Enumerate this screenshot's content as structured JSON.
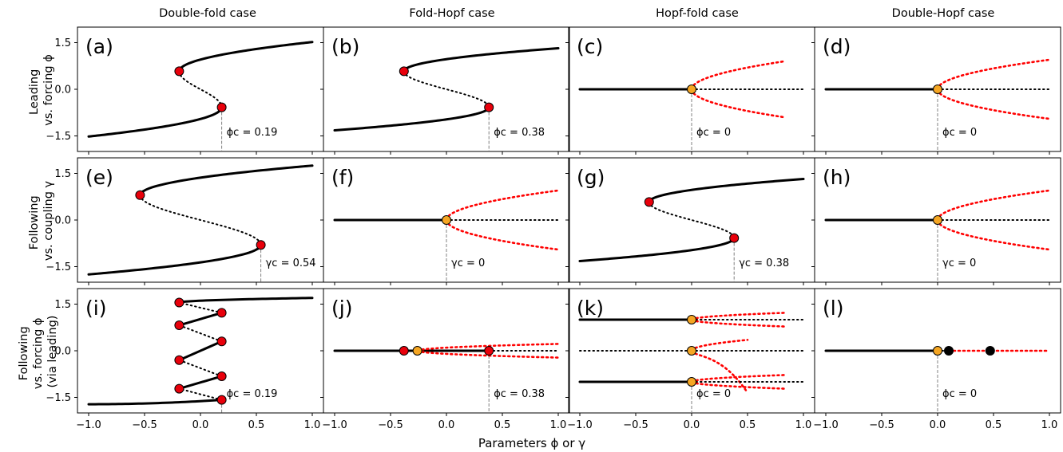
{
  "figure": {
    "xlabel": "Parameters ϕ or γ",
    "column_titles": [
      "Double-fold case",
      "Fold-Hopf case",
      "Hopf-fold case",
      "Double-Hopf case"
    ],
    "row_labels": [
      [
        "Leading",
        "vs. forcing ϕ"
      ],
      [
        "Following",
        "vs. coupling γ"
      ],
      [
        "Following",
        "vs. forcing ϕ",
        "(via leading)"
      ]
    ],
    "colors": {
      "stable": "#000000",
      "unstable": "#000000",
      "periodic": "#ff0000",
      "fold_point": "#e8000b",
      "hopf_point": "#f5a623",
      "other_point": "#000000",
      "threshold_line": "#808080"
    }
  },
  "chart_data": [
    {
      "type": "line",
      "label": "(a)",
      "row": 0,
      "col": 0,
      "xlim": [
        -1.1,
        1.1
      ],
      "ylim": [
        -2.0,
        2.0
      ],
      "xticks": [
        "-1.0",
        "-0.5",
        "0.0",
        "0.5",
        "1.0"
      ],
      "yticks": [
        "-1.5",
        "0.0",
        "1.5"
      ],
      "threshold": {
        "x": 0.19,
        "text": "ϕc = 0.19"
      },
      "bifurcation": {
        "kind": "s-curve",
        "x_fold_left": -0.19,
        "x_fold_right": 0.19,
        "y_fold_upper": 0.58,
        "y_fold_lower": -0.58,
        "y_at_left_end": -1.52,
        "y_at_right_end": 1.52,
        "x_range": [
          -1.0,
          1.0
        ]
      },
      "points": [
        {
          "x": -0.19,
          "y": 0.58,
          "kind": "fold"
        },
        {
          "x": 0.19,
          "y": -0.58,
          "kind": "fold"
        }
      ]
    },
    {
      "type": "line",
      "label": "(b)",
      "row": 0,
      "col": 1,
      "xlim": [
        -1.1,
        1.1
      ],
      "ylim": [
        -2.0,
        2.0
      ],
      "xticks": [
        "-1.0",
        "-0.5",
        "0.0",
        "0.5",
        "1.0"
      ],
      "yticks": [
        "-1.5",
        "0.0",
        "1.5"
      ],
      "threshold": {
        "x": 0.38,
        "text": "ϕc = 0.38"
      },
      "bifurcation": {
        "kind": "s-curve",
        "x_fold_left": -0.38,
        "x_fold_right": 0.38,
        "y_fold_upper": 0.58,
        "y_fold_lower": -0.58,
        "y_at_left_end": -1.32,
        "y_at_right_end": 1.32,
        "x_range": [
          -1.0,
          1.0
        ]
      },
      "points": [
        {
          "x": -0.38,
          "y": 0.58,
          "kind": "fold"
        },
        {
          "x": 0.38,
          "y": -0.58,
          "kind": "fold"
        }
      ]
    },
    {
      "type": "line",
      "label": "(c)",
      "row": 0,
      "col": 2,
      "xlim": [
        -1.1,
        1.1
      ],
      "ylim": [
        -2.0,
        2.0
      ],
      "xticks": [
        "-1.0",
        "-0.5",
        "0.0",
        "0.5",
        "1.0"
      ],
      "yticks": [
        "-1.5",
        "0.0",
        "1.5"
      ],
      "threshold": {
        "x": 0.0,
        "text": "ϕc = 0"
      },
      "bifurcation": {
        "kind": "hopf",
        "y0": 0.0,
        "x_hopf": 0.0,
        "x_end": 1.0,
        "x_periodic_end": 0.83,
        "amp": 0.9,
        "x_range": [
          -1.0,
          1.0
        ]
      },
      "points": [
        {
          "x": 0.0,
          "y": 0.0,
          "kind": "hopf"
        }
      ]
    },
    {
      "type": "line",
      "label": "(d)",
      "row": 0,
      "col": 3,
      "xlim": [
        -1.1,
        1.1
      ],
      "ylim": [
        -2.0,
        2.0
      ],
      "xticks": [
        "-1.0",
        "-0.5",
        "0.0",
        "0.5",
        "1.0"
      ],
      "yticks": [
        "-1.5",
        "0.0",
        "1.5"
      ],
      "threshold": {
        "x": 0.0,
        "text": "ϕc = 0"
      },
      "bifurcation": {
        "kind": "hopf",
        "y0": 0.0,
        "x_hopf": 0.0,
        "x_end": 1.0,
        "x_periodic_end": 1.0,
        "amp": 0.95,
        "x_range": [
          -1.0,
          1.0
        ]
      },
      "points": [
        {
          "x": 0.0,
          "y": 0.0,
          "kind": "hopf"
        }
      ]
    },
    {
      "type": "line",
      "label": "(e)",
      "row": 1,
      "col": 0,
      "xlim": [
        -1.1,
        1.1
      ],
      "ylim": [
        -2.0,
        2.0
      ],
      "xticks": [
        "-1.0",
        "-0.5",
        "0.0",
        "0.5",
        "1.0"
      ],
      "yticks": [
        "-1.5",
        "0.0",
        "1.5"
      ],
      "threshold": {
        "x": 0.54,
        "text": "γc = 0.54"
      },
      "bifurcation": {
        "kind": "s-curve",
        "x_fold_left": -0.54,
        "x_fold_right": 0.54,
        "y_fold_upper": 0.8,
        "y_fold_lower": -0.8,
        "y_at_left_end": -1.75,
        "y_at_right_end": 1.75,
        "x_range": [
          -1.0,
          1.0
        ]
      },
      "points": [
        {
          "x": -0.54,
          "y": 0.8,
          "kind": "fold"
        },
        {
          "x": 0.54,
          "y": -0.8,
          "kind": "fold"
        }
      ]
    },
    {
      "type": "line",
      "label": "(f)",
      "row": 1,
      "col": 1,
      "xlim": [
        -1.1,
        1.1
      ],
      "ylim": [
        -2.0,
        2.0
      ],
      "xticks": [
        "-1.0",
        "-0.5",
        "0.0",
        "0.5",
        "1.0"
      ],
      "yticks": [
        "-1.5",
        "0.0",
        "1.5"
      ],
      "threshold": {
        "x": 0.0,
        "text": "γc = 0"
      },
      "bifurcation": {
        "kind": "hopf",
        "y0": 0.0,
        "x_hopf": 0.0,
        "x_end": 1.0,
        "x_periodic_end": 1.0,
        "amp": 0.95,
        "x_range": [
          -1.0,
          1.0
        ]
      },
      "points": [
        {
          "x": 0.0,
          "y": 0.0,
          "kind": "hopf"
        }
      ]
    },
    {
      "type": "line",
      "label": "(g)",
      "row": 1,
      "col": 2,
      "xlim": [
        -1.1,
        1.1
      ],
      "ylim": [
        -2.0,
        2.0
      ],
      "xticks": [
        "-1.0",
        "-0.5",
        "0.0",
        "0.5",
        "1.0"
      ],
      "yticks": [
        "-1.5",
        "0.0",
        "1.5"
      ],
      "threshold": {
        "x": 0.38,
        "text": "γc = 0.38"
      },
      "bifurcation": {
        "kind": "s-curve",
        "x_fold_left": -0.38,
        "x_fold_right": 0.38,
        "y_fold_upper": 0.58,
        "y_fold_lower": -0.58,
        "y_at_left_end": -1.32,
        "y_at_right_end": 1.32,
        "x_range": [
          -1.0,
          1.0
        ]
      },
      "points": [
        {
          "x": -0.38,
          "y": 0.58,
          "kind": "fold"
        },
        {
          "x": 0.38,
          "y": -0.58,
          "kind": "fold"
        }
      ]
    },
    {
      "type": "line",
      "label": "(h)",
      "row": 1,
      "col": 3,
      "xlim": [
        -1.1,
        1.1
      ],
      "ylim": [
        -2.0,
        2.0
      ],
      "xticks": [
        "-1.0",
        "-0.5",
        "0.0",
        "0.5",
        "1.0"
      ],
      "yticks": [
        "-1.5",
        "0.0",
        "1.5"
      ],
      "threshold": {
        "x": 0.0,
        "text": "γc = 0"
      },
      "bifurcation": {
        "kind": "hopf",
        "y0": 0.0,
        "x_hopf": 0.0,
        "x_end": 1.0,
        "x_periodic_end": 1.0,
        "amp": 0.95,
        "x_range": [
          -1.0,
          1.0
        ]
      },
      "points": [
        {
          "x": 0.0,
          "y": 0.0,
          "kind": "hopf"
        }
      ]
    },
    {
      "type": "line",
      "label": "(i)",
      "row": 2,
      "col": 0,
      "xlim": [
        -1.1,
        1.1
      ],
      "ylim": [
        -2.0,
        2.0
      ],
      "xticks": [
        "-1.0",
        "-0.5",
        "0.0",
        "0.5",
        "1.0"
      ],
      "yticks": [
        "-1.5",
        "0.0",
        "1.5"
      ],
      "threshold": {
        "x": 0.19,
        "text": "ϕc = 0.19"
      },
      "bifurcation": {
        "kind": "multi-fold",
        "bottom": {
          "from": [
            -1.0,
            -1.72
          ],
          "to": [
            0.19,
            -1.58
          ]
        },
        "top": {
          "from": [
            -0.19,
            1.55
          ],
          "to": [
            1.0,
            1.7
          ]
        },
        "zigzag": [
          [
            0.19,
            -1.58
          ],
          [
            -0.19,
            -1.22
          ],
          [
            0.19,
            -0.82
          ],
          [
            -0.19,
            -0.3
          ],
          [
            0.19,
            0.3
          ],
          [
            -0.19,
            0.82
          ],
          [
            0.19,
            1.22
          ],
          [
            -0.19,
            1.55
          ]
        ]
      },
      "points": [
        {
          "x": 0.19,
          "y": -1.58,
          "kind": "fold"
        },
        {
          "x": -0.19,
          "y": -1.22,
          "kind": "fold"
        },
        {
          "x": 0.19,
          "y": -0.82,
          "kind": "fold"
        },
        {
          "x": -0.19,
          "y": -0.3,
          "kind": "fold"
        },
        {
          "x": 0.19,
          "y": 0.3,
          "kind": "fold"
        },
        {
          "x": -0.19,
          "y": 0.82,
          "kind": "fold"
        },
        {
          "x": 0.19,
          "y": 1.22,
          "kind": "fold"
        },
        {
          "x": -0.19,
          "y": 1.55,
          "kind": "fold"
        }
      ]
    },
    {
      "type": "line",
      "label": "(j)",
      "row": 2,
      "col": 1,
      "xlim": [
        -1.1,
        1.1
      ],
      "ylim": [
        -2.0,
        2.0
      ],
      "xticks": [
        "-1.0",
        "-0.5",
        "0.0",
        "0.5",
        "1.0"
      ],
      "yticks": [
        "-1.5",
        "0.0",
        "1.5"
      ],
      "threshold": {
        "x": 0.38,
        "text": "ϕc = 0.38"
      },
      "bifurcation": {
        "kind": "fold-hopf-flat",
        "y0": 0.0,
        "x_fold_left": -0.38,
        "x_hopf": -0.26,
        "x_fold_right": 0.38,
        "amp": 0.22,
        "x_range": [
          -1.0,
          1.0
        ]
      },
      "points": [
        {
          "x": -0.38,
          "y": 0.0,
          "kind": "fold"
        },
        {
          "x": -0.26,
          "y": 0.0,
          "kind": "hopf"
        },
        {
          "x": 0.38,
          "y": 0.0,
          "kind": "fold"
        }
      ]
    },
    {
      "type": "line",
      "label": "(k)",
      "row": 2,
      "col": 2,
      "xlim": [
        -1.1,
        1.1
      ],
      "ylim": [
        -2.0,
        2.0
      ],
      "xticks": [
        "-1.0",
        "-0.5",
        "0.0",
        "0.5",
        "1.0"
      ],
      "yticks": [
        "-1.5",
        "0.0",
        "1.5"
      ],
      "threshold": {
        "x": 0.0,
        "text": "ϕc = 0"
      },
      "bifurcation": {
        "kind": "triple-hopf",
        "levels": [
          1.0,
          0.0,
          -1.0
        ],
        "x_hopf": 0.0,
        "x_end": 1.0,
        "x_periodic_end": 0.83
      },
      "points": [
        {
          "x": 0.0,
          "y": 1.0,
          "kind": "hopf"
        },
        {
          "x": 0.0,
          "y": 0.0,
          "kind": "hopf"
        },
        {
          "x": 0.0,
          "y": -1.0,
          "kind": "hopf"
        }
      ]
    },
    {
      "type": "line",
      "label": "(l)",
      "row": 2,
      "col": 3,
      "xlim": [
        -1.1,
        1.1
      ],
      "ylim": [
        -2.0,
        2.0
      ],
      "xticks": [
        "-1.0",
        "-0.5",
        "0.0",
        "0.5",
        "1.0"
      ],
      "yticks": [
        "-1.5",
        "0.0",
        "1.5"
      ],
      "threshold": {
        "x": 0.0,
        "text": "ϕc = 0"
      },
      "bifurcation": {
        "kind": "hopf-chain",
        "y0": 0.0,
        "x_hopf": 0.0,
        "x_end": 1.0
      },
      "points": [
        {
          "x": 0.0,
          "y": 0.0,
          "kind": "hopf"
        },
        {
          "x": 0.1,
          "y": 0.0,
          "kind": "other"
        },
        {
          "x": 0.47,
          "y": 0.0,
          "kind": "other"
        }
      ]
    }
  ]
}
